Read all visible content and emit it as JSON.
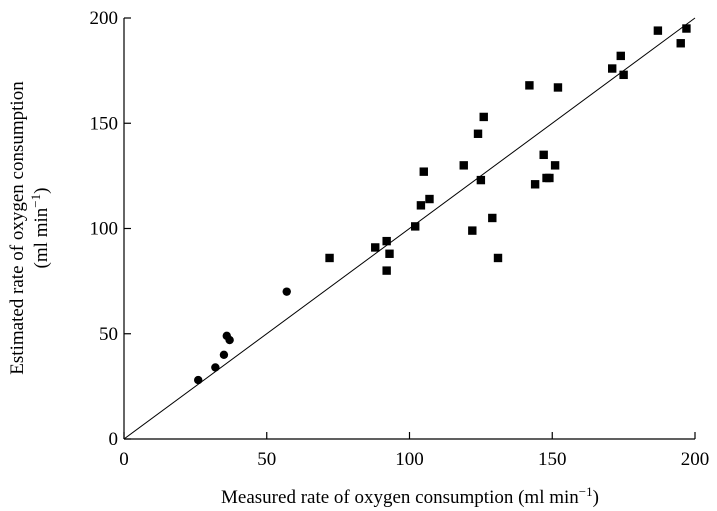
{
  "chart_data": {
    "type": "scatter",
    "xlabel": "Measured rate of oxygen consumption (ml min",
    "xlabel_sup": "−1",
    "xlabel_end": ")",
    "ylabel": "Estimated rate of oxygen consumption",
    "ylabel_unit": "(ml min",
    "ylabel_sup": "−1",
    "ylabel_end": ")",
    "xlim": [
      0,
      200
    ],
    "ylim": [
      0,
      200
    ],
    "xticks": [
      "0",
      "50",
      "100",
      "150",
      "200"
    ],
    "yticks": [
      "0",
      "50",
      "100",
      "150",
      "200"
    ],
    "grid": false,
    "reference_line": {
      "x": [
        0,
        200
      ],
      "y": [
        0,
        200
      ]
    },
    "series": [
      {
        "marker": "circle",
        "color": "#000000",
        "points": [
          [
            26,
            28
          ],
          [
            32,
            34
          ],
          [
            35,
            40
          ],
          [
            36,
            49
          ],
          [
            37,
            47
          ],
          [
            57,
            70
          ]
        ]
      },
      {
        "marker": "square",
        "color": "#000000",
        "points": [
          [
            72,
            86
          ],
          [
            88,
            91
          ],
          [
            92,
            94
          ],
          [
            92,
            80
          ],
          [
            93,
            88
          ],
          [
            102,
            101
          ],
          [
            104,
            111
          ],
          [
            105,
            127
          ],
          [
            107,
            114
          ],
          [
            119,
            130
          ],
          [
            122,
            99
          ],
          [
            124,
            145
          ],
          [
            125,
            123
          ],
          [
            126,
            153
          ],
          [
            129,
            105
          ],
          [
            131,
            86
          ],
          [
            142,
            168
          ],
          [
            144,
            121
          ],
          [
            147,
            135
          ],
          [
            148,
            124
          ],
          [
            149,
            124
          ],
          [
            151,
            130
          ],
          [
            152,
            167
          ],
          [
            171,
            176
          ],
          [
            174,
            182
          ],
          [
            175,
            173
          ],
          [
            187,
            194
          ],
          [
            195,
            188
          ],
          [
            197,
            195
          ]
        ]
      }
    ]
  }
}
